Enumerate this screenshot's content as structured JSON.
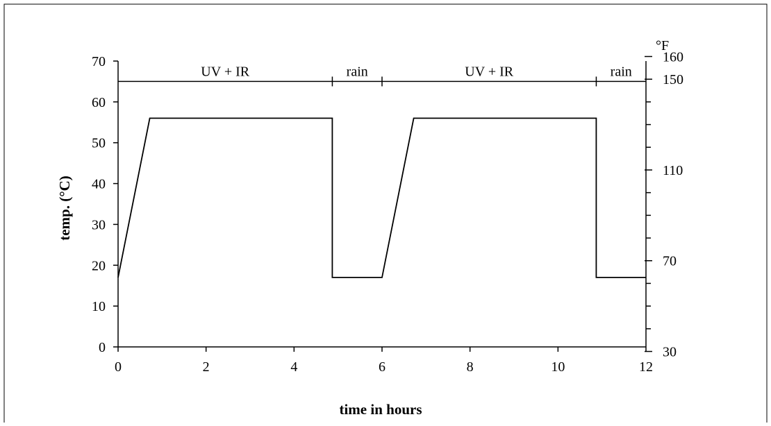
{
  "chart_data": {
    "type": "line",
    "title": "",
    "xlabel": "time in hours",
    "ylabel": "temp. (°C)",
    "y2label": "°F",
    "xlim": [
      0,
      12
    ],
    "ylim": [
      0,
      70
    ],
    "x_ticks": [
      0,
      2,
      4,
      6,
      8,
      10,
      12
    ],
    "y_ticks": [
      0,
      10,
      20,
      30,
      40,
      50,
      60,
      70
    ],
    "y2_ticks": [
      30,
      70,
      110,
      150,
      160
    ],
    "y2_minor_ticks": [
      40,
      50,
      60,
      80,
      90,
      100,
      120,
      130,
      140
    ],
    "grid": false,
    "legend": "none",
    "series": [
      {
        "x": [
          0,
          0.72,
          4.87,
          4.87,
          6.0,
          6.72,
          10.87,
          10.87,
          12.0
        ],
        "y": [
          17,
          56,
          56,
          17,
          17,
          56,
          56,
          17,
          17
        ]
      }
    ],
    "phases": [
      {
        "label": "UV + IR",
        "start": 0,
        "end": 4.87
      },
      {
        "label": "rain",
        "start": 4.87,
        "end": 6.0
      },
      {
        "label": "UV + IR",
        "start": 6.0,
        "end": 10.87
      },
      {
        "label": "rain",
        "start": 10.87,
        "end": 12.0
      }
    ],
    "phase_line_y": 65
  }
}
